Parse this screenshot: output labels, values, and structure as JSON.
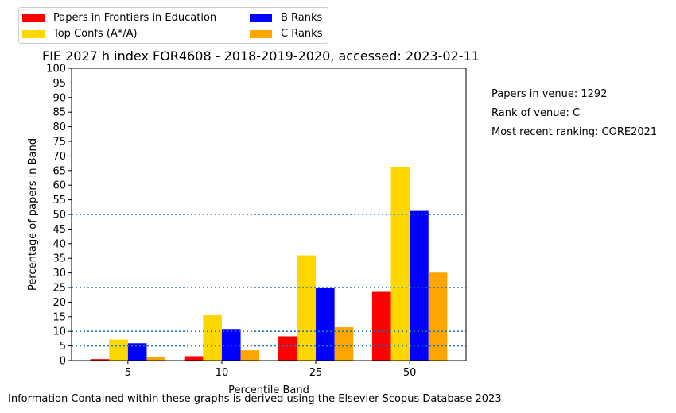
{
  "legend": [
    {
      "label": "Papers in Frontiers in Education",
      "color": "#ff0000"
    },
    {
      "label": "Top Confs (A*/A)",
      "color": "#ffd700"
    },
    {
      "label": "B Ranks",
      "color": "#0000ff"
    },
    {
      "label": "C Ranks",
      "color": "#ffa500"
    }
  ],
  "notes": {
    "papers": "Papers in venue: 1292",
    "rank": "Rank of venue: C",
    "recent": "Most recent ranking: CORE2021"
  },
  "footer": "Information Contained within these graphs is derived using the Elsevier Scopus Database 2023",
  "chart_data": {
    "type": "bar",
    "title": "FIE 2027 h index FOR4608 - 2018-2019-2020, accessed: 2023-02-11",
    "xlabel": "Percentile Band",
    "ylabel": "Percentage of papers in Band",
    "categories": [
      "5",
      "10",
      "25",
      "50"
    ],
    "ylim": [
      0,
      100
    ],
    "yticks": [
      0,
      5,
      10,
      15,
      20,
      25,
      30,
      35,
      40,
      45,
      50,
      55,
      60,
      65,
      70,
      75,
      80,
      85,
      90,
      95,
      100
    ],
    "reference_lines": [
      5,
      10,
      25,
      50
    ],
    "series": [
      {
        "name": "Papers in Frontiers in Education",
        "color": "#ff0000",
        "values": [
          0.5,
          1.5,
          8.3,
          23.5
        ]
      },
      {
        "name": "Top Confs (A*/A)",
        "color": "#ffd700",
        "values": [
          7.2,
          15.5,
          36.0,
          66.3
        ]
      },
      {
        "name": "B Ranks",
        "color": "#0000ff",
        "values": [
          5.9,
          10.8,
          25.0,
          51.2
        ]
      },
      {
        "name": "C Ranks",
        "color": "#ffa500",
        "values": [
          1.1,
          3.5,
          11.4,
          30.1
        ]
      }
    ]
  }
}
